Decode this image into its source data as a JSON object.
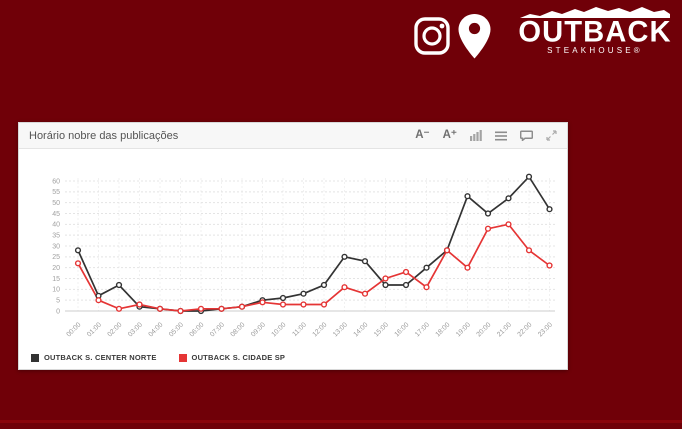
{
  "page": {
    "background_color": "#700008",
    "bottom_accent_color": "#8a040b"
  },
  "brand": {
    "name": "OUTBACK",
    "sub": "STEAKHOUSE®",
    "color": "#ffffff",
    "icons": [
      {
        "name": "instagram-icon",
        "style": "white outline rounded square with lens"
      },
      {
        "name": "location-pin-icon",
        "style": "white filled map pin"
      }
    ]
  },
  "panel": {
    "title": "Horário nobre das publicações",
    "toolbar": {
      "font_decrease": "A⁻",
      "font_increase": "A⁺",
      "icons": [
        "bar-chart-icon",
        "list-icon",
        "comment-icon",
        "expand-icon"
      ]
    }
  },
  "chart_data": {
    "type": "line",
    "title": "Horário nobre das publicações",
    "x": [
      "00:00",
      "01:00",
      "02:00",
      "03:00",
      "04:00",
      "05:00",
      "06:00",
      "07:00",
      "08:00",
      "09:00",
      "10:00",
      "11:00",
      "12:00",
      "13:00",
      "14:00",
      "15:00",
      "16:00",
      "17:00",
      "18:00",
      "19:00",
      "20:00",
      "21:00",
      "22:00",
      "23:00"
    ],
    "series": [
      {
        "name": "OUTBACK S. CENTER NORTE",
        "color": "#333333",
        "values": [
          28,
          7,
          12,
          2,
          1,
          0,
          0,
          1,
          2,
          5,
          6,
          8,
          12,
          25,
          23,
          12,
          12,
          20,
          28,
          53,
          45,
          52,
          62,
          47
        ]
      },
      {
        "name": "OUTBACK S. CIDADE SP",
        "color": "#e53535",
        "values": [
          22,
          5,
          1,
          3,
          1,
          0,
          1,
          1,
          2,
          4,
          3,
          3,
          3,
          11,
          8,
          15,
          18,
          11,
          28,
          20,
          38,
          40,
          28,
          21
        ]
      }
    ],
    "yticks": [
      0,
      5,
      10,
      15,
      20,
      25,
      30,
      35,
      40,
      45,
      50,
      55,
      60
    ],
    "ylim": [
      0,
      65
    ],
    "xlabel": "",
    "ylabel": "",
    "grid": true,
    "marker": "open-circle",
    "legend_position": "bottom-left"
  }
}
